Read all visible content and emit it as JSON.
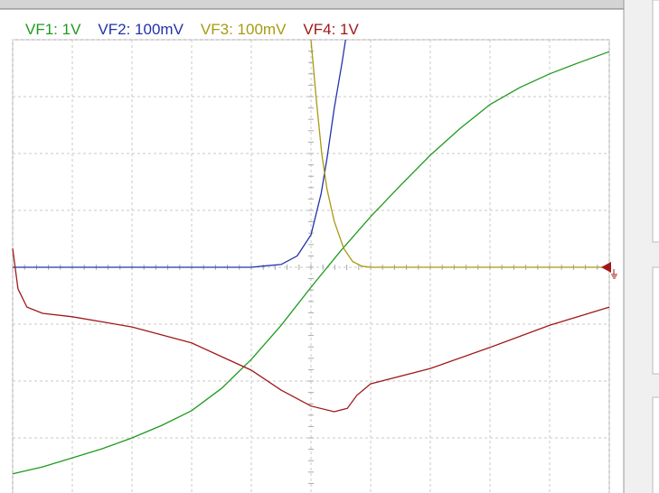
{
  "chart_data": {
    "type": "line",
    "xlim": [
      0,
      10
    ],
    "ylim": [
      -4,
      4
    ],
    "xticks": [
      0,
      1,
      2,
      3,
      4,
      5,
      6,
      7,
      8,
      9,
      10
    ],
    "yticks": [
      -4,
      -3,
      -2,
      -1,
      0,
      1,
      2,
      3,
      4
    ],
    "grid": true,
    "series": [
      {
        "name": "VF1: 1V",
        "color": "#1f9a1f",
        "x": [
          0,
          0.5,
          1,
          1.5,
          2,
          2.5,
          3,
          3.5,
          4,
          4.5,
          5,
          5.5,
          6,
          6.5,
          7,
          7.5,
          8,
          8.5,
          9,
          9.5,
          10
        ],
        "values": [
          -3.63,
          -3.51,
          -3.35,
          -3.19,
          -3.0,
          -2.78,
          -2.52,
          -2.13,
          -1.62,
          -1.02,
          -0.35,
          0.29,
          0.89,
          1.44,
          1.97,
          2.44,
          2.86,
          3.16,
          3.4,
          3.6,
          3.79
        ]
      },
      {
        "name": "VF2: 100mV",
        "color": "#2233aa",
        "x": [
          0,
          1,
          2,
          3,
          4,
          4.2,
          4.5,
          4.77,
          5,
          5.17,
          5.27,
          5.39,
          5.52,
          5.58
        ],
        "values": [
          0,
          0,
          0,
          0,
          0,
          0.02,
          0.05,
          0.2,
          0.57,
          1.29,
          1.92,
          2.79,
          3.59,
          4.0
        ]
      },
      {
        "name": "VF3: 100mV",
        "color": "#a89a10",
        "x": [
          5.0,
          5.09,
          5.18,
          5.27,
          5.39,
          5.55,
          5.7,
          5.85,
          6,
          7,
          8,
          9,
          10
        ],
        "values": [
          4.0,
          2.95,
          2.0,
          1.37,
          0.81,
          0.33,
          0.1,
          0.02,
          0,
          0,
          0,
          0,
          0
        ]
      },
      {
        "name": "VF4: 1V",
        "color": "#a01818",
        "x": [
          0,
          0.09,
          0.24,
          0.5,
          1,
          2,
          3,
          4,
          4.5,
          5,
          5.39,
          5.61,
          5.77,
          6,
          7,
          8,
          9,
          10
        ],
        "values": [
          0.33,
          -0.38,
          -0.7,
          -0.81,
          -0.87,
          -1.05,
          -1.33,
          -1.81,
          -2.16,
          -2.44,
          -2.54,
          -2.48,
          -2.25,
          -2.05,
          -1.78,
          -1.41,
          -1.02,
          -0.7
        ]
      }
    ]
  }
}
